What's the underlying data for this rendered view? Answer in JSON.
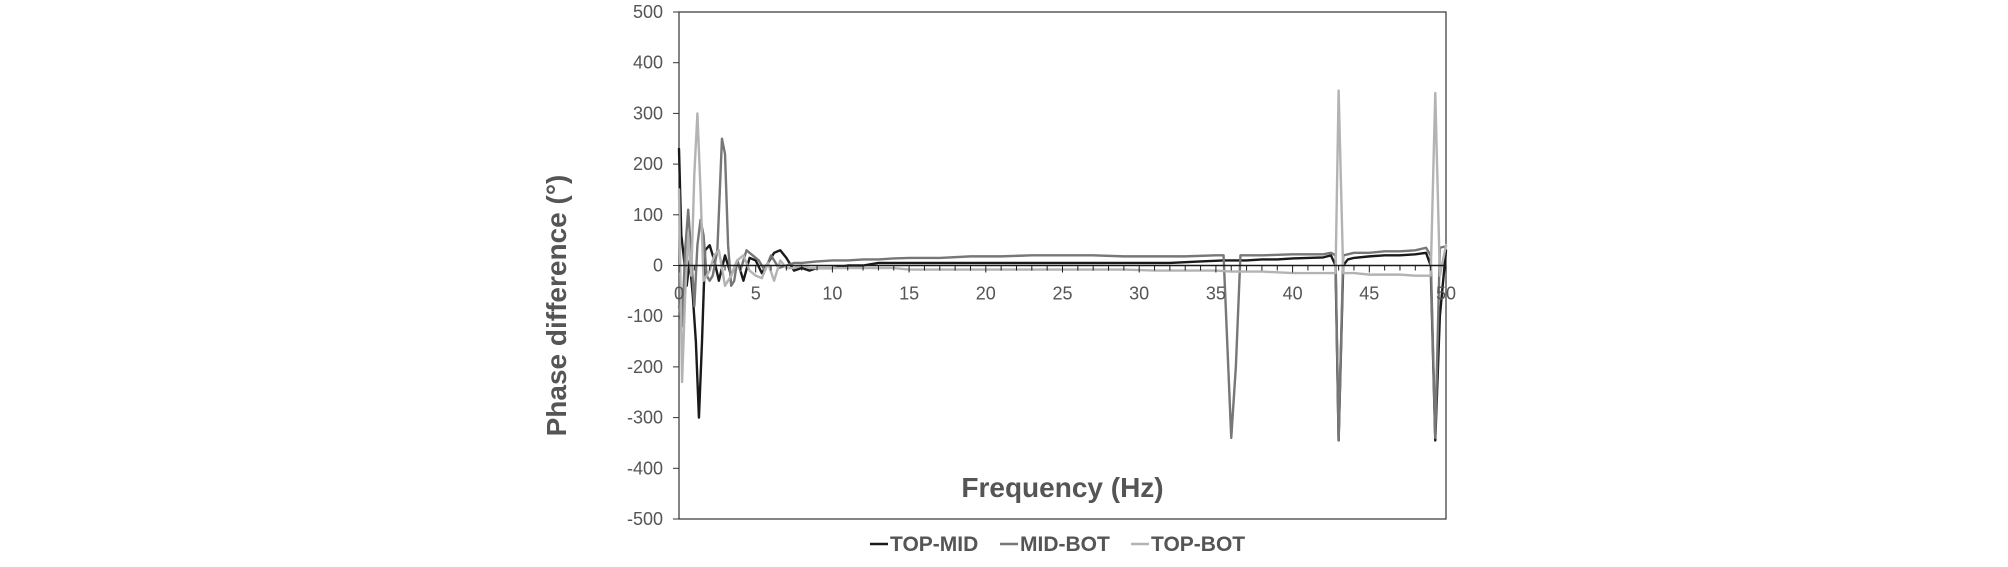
{
  "chart_data": {
    "type": "line",
    "title": "",
    "xlabel": "Frequency (Hz)",
    "ylabel": "Phase difference (°)",
    "xlim": [
      0,
      50
    ],
    "ylim": [
      -500,
      500
    ],
    "x_ticks": [
      0,
      5,
      10,
      15,
      20,
      25,
      30,
      35,
      40,
      45,
      50
    ],
    "y_ticks": [
      500,
      400,
      300,
      200,
      100,
      0,
      -100,
      -200,
      -300,
      -400,
      -500
    ],
    "x_tick_labels": [
      "0",
      "5",
      "10",
      "15",
      "20",
      "25",
      "30",
      "35",
      "40",
      "45",
      "50"
    ],
    "y_tick_labels": [
      "500",
      "400",
      "300",
      "200",
      "100",
      "0",
      "-100",
      "-200",
      "-300",
      "-400",
      "-500"
    ],
    "grid": false,
    "legend_position": "bottom",
    "series": [
      {
        "name": "TOP-MID",
        "color": "#1a1a1a",
        "x": [
          0,
          0.15,
          0.3,
          0.5,
          0.7,
          0.9,
          1.1,
          1.3,
          1.5,
          1.7,
          2.0,
          2.3,
          2.6,
          3.0,
          3.4,
          3.8,
          4.2,
          4.6,
          5.0,
          5.4,
          5.8,
          6.2,
          6.6,
          7.0,
          7.5,
          8.0,
          8.5,
          9.0,
          10,
          11,
          12,
          13,
          14,
          15,
          16,
          18,
          20,
          22,
          24,
          26,
          28,
          30,
          32,
          34,
          35.5,
          36,
          36.3,
          36.6,
          37,
          38,
          39,
          40,
          41,
          42,
          42.5,
          42.8,
          43.0,
          43.3,
          43.6,
          44,
          45,
          46,
          47,
          48,
          48.7,
          49.0,
          49.3,
          49.6,
          50
        ],
        "y": [
          230,
          60,
          20,
          -40,
          10,
          -60,
          -150,
          -300,
          -150,
          30,
          40,
          10,
          -30,
          20,
          -20,
          10,
          -30,
          15,
          10,
          -15,
          5,
          25,
          30,
          15,
          -10,
          -5,
          -10,
          -5,
          -5,
          0,
          0,
          5,
          5,
          5,
          5,
          5,
          5,
          5,
          5,
          5,
          5,
          5,
          5,
          8,
          10,
          10,
          10,
          10,
          10,
          12,
          12,
          14,
          15,
          16,
          20,
          0,
          -345,
          0,
          12,
          15,
          18,
          20,
          20,
          22,
          25,
          0,
          -345,
          -100,
          30
        ]
      },
      {
        "name": "MID-BOT",
        "color": "#777777",
        "x": [
          0,
          0.2,
          0.4,
          0.6,
          0.8,
          1.0,
          1.2,
          1.4,
          1.6,
          1.8,
          2.0,
          2.2,
          2.5,
          2.8,
          3.0,
          3.2,
          3.4,
          3.6,
          3.8,
          4.0,
          4.4,
          4.8,
          5.2,
          5.6,
          6.0,
          6.5,
          7.0,
          7.5,
          8.0,
          9,
          10,
          11,
          12,
          13,
          14,
          15,
          17,
          19,
          21,
          23,
          25,
          27,
          29,
          31,
          33,
          35,
          35.5,
          36.0,
          36.3,
          36.6,
          37,
          38,
          40,
          42,
          42.5,
          42.8,
          43.0,
          43.3,
          43.6,
          44,
          45,
          46,
          47,
          48,
          48.7,
          49.0,
          49.3,
          49.6,
          50
        ],
        "y": [
          -80,
          -120,
          30,
          110,
          20,
          -80,
          40,
          90,
          60,
          -20,
          -30,
          -20,
          30,
          250,
          220,
          40,
          -40,
          -30,
          10,
          -10,
          30,
          20,
          10,
          -10,
          20,
          -5,
          0,
          5,
          5,
          8,
          10,
          10,
          12,
          12,
          14,
          15,
          15,
          18,
          18,
          20,
          20,
          20,
          18,
          18,
          18,
          20,
          20,
          -340,
          -200,
          20,
          20,
          20,
          22,
          22,
          25,
          20,
          -345,
          20,
          22,
          25,
          25,
          28,
          28,
          30,
          35,
          20,
          -340,
          35,
          38
        ]
      },
      {
        "name": "TOP-BOT",
        "color": "#b3b3b3",
        "x": [
          0,
          0.2,
          0.4,
          0.6,
          0.8,
          1.0,
          1.2,
          1.4,
          1.6,
          1.8,
          2.0,
          2.3,
          2.6,
          3.0,
          3.4,
          3.8,
          4.2,
          4.6,
          5.0,
          5.4,
          5.8,
          6.2,
          6.6,
          7.0,
          7.5,
          8.0,
          8.5,
          9,
          10,
          11,
          12,
          13,
          14,
          15,
          17,
          19,
          21,
          23,
          25,
          27,
          29,
          31,
          33,
          35,
          36,
          37,
          38,
          40,
          42,
          42.5,
          42.8,
          43.0,
          43.3,
          43.6,
          44,
          45,
          46,
          47,
          48,
          48.7,
          49.0,
          49.3,
          49.6,
          50
        ],
        "y": [
          150,
          -230,
          -60,
          60,
          -20,
          180,
          300,
          150,
          -30,
          -20,
          -10,
          20,
          30,
          -40,
          -20,
          10,
          20,
          -10,
          -20,
          -25,
          5,
          -30,
          10,
          -5,
          -5,
          0,
          -5,
          -5,
          -5,
          -5,
          -5,
          -5,
          -5,
          -8,
          -8,
          -8,
          -8,
          -8,
          -8,
          -8,
          -8,
          -10,
          -10,
          -10,
          -12,
          -12,
          -12,
          -15,
          -15,
          -15,
          -15,
          345,
          -15,
          -15,
          -15,
          -18,
          -18,
          -18,
          -20,
          -20,
          -20,
          340,
          -20,
          40
        ]
      }
    ]
  }
}
